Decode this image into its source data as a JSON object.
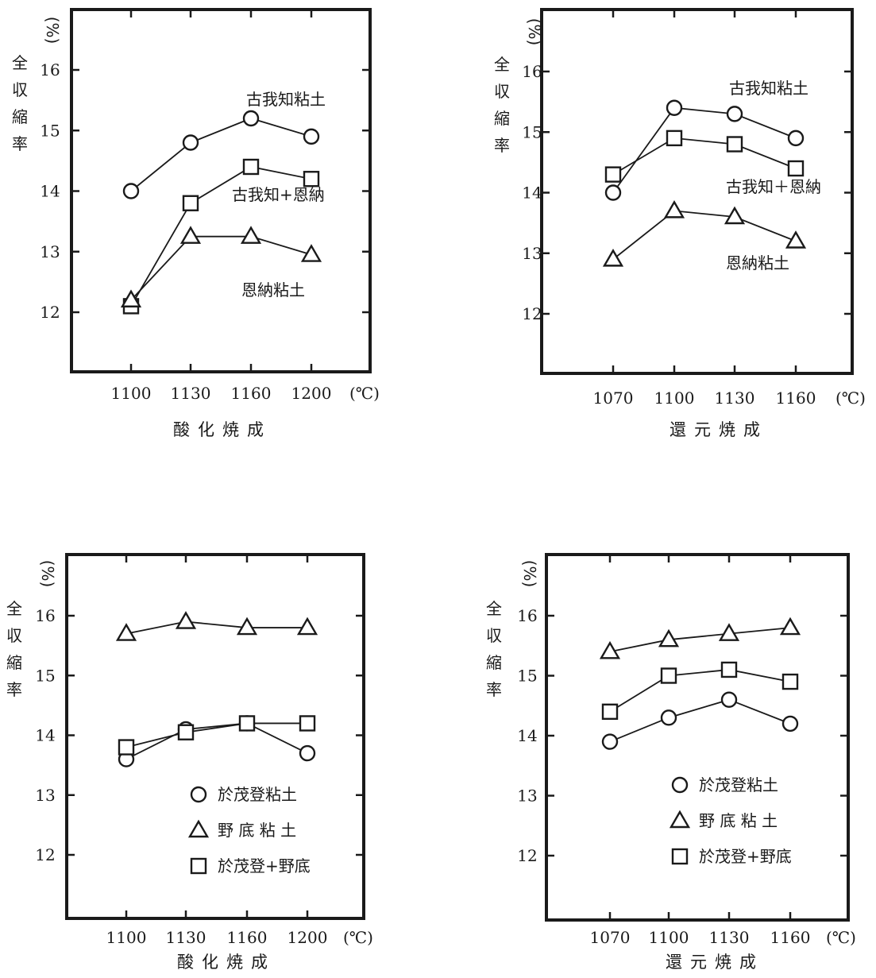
{
  "chart_data": [
    {
      "type": "line",
      "xlabel": "酸化焼成",
      "x_unit": "(℃)",
      "ylabel": [
        "全",
        "収",
        "縮",
        "率"
      ],
      "y_unit": "(%)",
      "categories": [
        "1100",
        "1130",
        "1160",
        "1200"
      ],
      "ylim": [
        11,
        17
      ],
      "yticks": [
        12,
        13,
        14,
        15,
        16
      ],
      "series": [
        {
          "name": "古我知粘土",
          "marker": "circle",
          "values": [
            14.0,
            14.8,
            15.2,
            14.9
          ]
        },
        {
          "name": "古我知+恩納",
          "marker": "square",
          "values": [
            12.1,
            13.8,
            14.4,
            14.2
          ]
        },
        {
          "name": "恩納粘土",
          "marker": "triangle",
          "values": [
            12.2,
            13.25,
            13.25,
            12.95
          ]
        }
      ],
      "legend": "inline"
    },
    {
      "type": "line",
      "xlabel": "還元焼成",
      "x_unit": "(℃)",
      "ylabel": [
        "全",
        "収",
        "縮",
        "率"
      ],
      "y_unit": "(%)",
      "categories": [
        "1070",
        "1100",
        "1130",
        "1160"
      ],
      "ylim": [
        11,
        17
      ],
      "yticks": [
        12,
        13,
        14,
        15,
        16
      ],
      "series": [
        {
          "name": "古我知粘土",
          "marker": "circle",
          "values": [
            14.0,
            15.4,
            15.3,
            14.9
          ]
        },
        {
          "name": "古我知＋恩納",
          "marker": "square",
          "values": [
            14.3,
            14.9,
            14.8,
            14.4
          ]
        },
        {
          "name": "恩納粘土",
          "marker": "triangle",
          "values": [
            12.9,
            13.7,
            13.6,
            13.2
          ]
        }
      ],
      "legend": "inline"
    },
    {
      "type": "line",
      "xlabel": "酸化焼成",
      "x_unit": "(℃)",
      "ylabel": [
        "全",
        "収",
        "縮",
        "率"
      ],
      "y_unit": "(%)",
      "categories": [
        "1100",
        "1130",
        "1160",
        "1200"
      ],
      "ylim": [
        11,
        17
      ],
      "yticks": [
        12,
        13,
        14,
        15,
        16
      ],
      "series": [
        {
          "name": "於茂登粘土",
          "marker": "circle",
          "values": [
            13.6,
            14.1,
            14.2,
            13.7
          ]
        },
        {
          "name": "野 底 粘 土",
          "marker": "triangle",
          "values": [
            15.7,
            15.9,
            15.8,
            15.8
          ]
        },
        {
          "name": "於茂登+野底",
          "marker": "square",
          "values": [
            13.8,
            14.05,
            14.2,
            14.2
          ]
        }
      ],
      "legend": "bottom-right"
    },
    {
      "type": "line",
      "xlabel": "還元焼成",
      "x_unit": "(℃)",
      "ylabel": [
        "全",
        "収",
        "縮",
        "率"
      ],
      "y_unit": "(%)",
      "categories": [
        "1070",
        "1100",
        "1130",
        "1160"
      ],
      "ylim": [
        11,
        17
      ],
      "yticks": [
        12,
        13,
        14,
        15,
        16
      ],
      "series": [
        {
          "name": "於茂登粘土",
          "marker": "circle",
          "values": [
            13.9,
            14.3,
            14.6,
            14.2
          ]
        },
        {
          "name": "野 底 粘 土",
          "marker": "triangle",
          "values": [
            15.4,
            15.6,
            15.7,
            15.8
          ]
        },
        {
          "name": "於茂登+野底",
          "marker": "square",
          "values": [
            14.4,
            15.0,
            15.1,
            14.9
          ]
        }
      ],
      "legend": "bottom-right"
    }
  ]
}
